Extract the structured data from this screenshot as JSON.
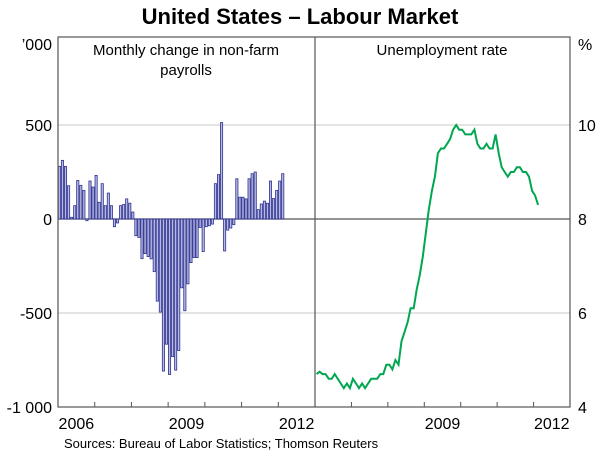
{
  "chart_data": [
    {
      "type": "bar",
      "title": "Monthly change in non-farm payrolls",
      "title_lines": [
        "Monthly change in non-farm",
        "payrolls"
      ],
      "unit_label": "’000",
      "x_start": "2006-01",
      "x_range": [
        2006,
        2013
      ],
      "x_ticks": [
        "2006",
        "2009",
        "2012"
      ],
      "ylim": [
        -1000,
        600
      ],
      "y_ticks": [
        500,
        0,
        -500,
        -1000
      ],
      "y_tick_labels": [
        "500",
        "0",
        "-500",
        "-1 000"
      ],
      "color": "#2e3192",
      "values": [
        280,
        312,
        280,
        177,
        9,
        71,
        205,
        179,
        152,
        -9,
        202,
        170,
        232,
        89,
        188,
        71,
        138,
        71,
        -41,
        -21,
        71,
        77,
        107,
        84,
        37,
        -89,
        -98,
        -211,
        -184,
        -200,
        -212,
        -280,
        -437,
        -495,
        -809,
        -666,
        -827,
        -732,
        -804,
        -700,
        -366,
        -488,
        -345,
        -232,
        -205,
        -205,
        -45,
        -173,
        -41,
        -36,
        -27,
        188,
        236,
        513,
        -170,
        -59,
        -48,
        -30,
        214,
        116,
        116,
        107,
        214,
        241,
        250,
        50,
        80,
        95,
        84,
        202,
        109,
        152,
        202,
        241
      ]
    },
    {
      "type": "line",
      "title": "Unemployment rate",
      "unit_label": "%",
      "x_start": "2006-01",
      "x_range": [
        2006,
        2013
      ],
      "x_ticks": [
        "2009",
        "2012"
      ],
      "ylim": [
        4,
        11.6
      ],
      "y_ticks": [
        10,
        8,
        6,
        4
      ],
      "y_tick_labels": [
        "10",
        "8",
        "6",
        "4"
      ],
      "color": "#00a650",
      "values": [
        4.7,
        4.75,
        4.7,
        4.7,
        4.6,
        4.6,
        4.7,
        4.6,
        4.5,
        4.4,
        4.5,
        4.4,
        4.6,
        4.5,
        4.4,
        4.5,
        4.4,
        4.5,
        4.6,
        4.6,
        4.6,
        4.7,
        4.7,
        4.9,
        4.9,
        4.8,
        5.0,
        4.9,
        5.4,
        5.6,
        5.8,
        6.1,
        6.1,
        6.5,
        6.8,
        7.2,
        7.7,
        8.2,
        8.6,
        8.9,
        9.4,
        9.5,
        9.5,
        9.6,
        9.7,
        9.9,
        10.0,
        9.9,
        9.9,
        9.8,
        9.8,
        9.8,
        9.9,
        9.6,
        9.5,
        9.5,
        9.6,
        9.5,
        9.5,
        9.8,
        9.4,
        9.1,
        9.0,
        8.9,
        9.0,
        9.0,
        9.1,
        9.1,
        9.0,
        9.0,
        8.9,
        8.6,
        8.5,
        8.3
      ]
    }
  ],
  "title": "United States – Labour Market",
  "source": "Sources: Bureau of Labor Statistics; Thomson Reuters"
}
